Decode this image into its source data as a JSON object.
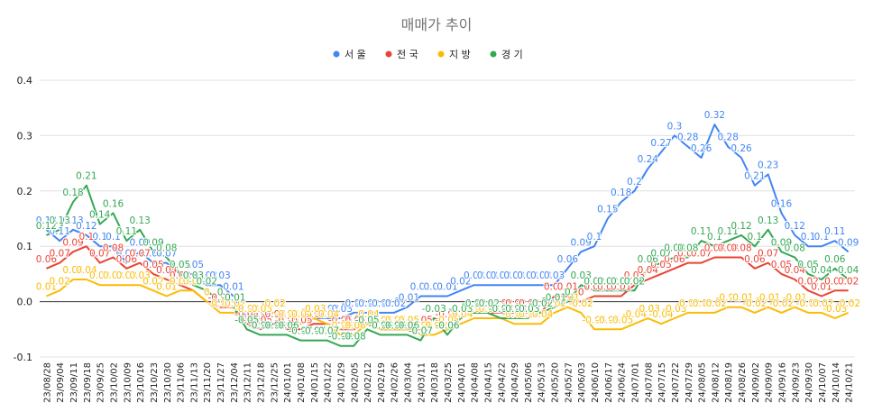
{
  "chart_data": {
    "type": "line",
    "title": "매매가 추이",
    "xlabel": "",
    "ylabel": "",
    "ylim": [
      -0.1,
      0.4
    ],
    "yticks": [
      -0.1,
      0.0,
      0.1,
      0.2,
      0.3,
      0.4
    ],
    "ytick_labels": [
      "-0.1",
      "0.0",
      "0.1",
      "0.2",
      "0.3",
      "0.4"
    ],
    "grid": "horizontal",
    "legend_position": "top",
    "x": [
      "23/08/28",
      "23/09/04",
      "23/09/11",
      "23/09/18",
      "23/09/25",
      "23/10/02",
      "23/10/09",
      "23/10/16",
      "23/10/23",
      "23/10/30",
      "23/11/06",
      "23/11/13",
      "23/11/20",
      "23/11/27",
      "23/12/04",
      "23/12/11",
      "23/12/18",
      "23/12/25",
      "24/01/01",
      "24/01/08",
      "24/01/15",
      "24/01/22",
      "24/01/29",
      "24/02/05",
      "24/02/12",
      "24/02/19",
      "24/02/26",
      "24/03/04",
      "24/03/11",
      "24/03/18",
      "24/03/25",
      "24/04/01",
      "24/04/08",
      "24/04/15",
      "24/04/22",
      "24/04/29",
      "24/05/06",
      "24/05/13",
      "24/05/20",
      "24/05/27",
      "24/06/03",
      "24/06/10",
      "24/06/17",
      "24/06/24",
      "24/07/01",
      "24/07/08",
      "24/07/15",
      "24/07/22",
      "24/07/29",
      "24/08/05",
      "24/08/12",
      "24/08/19",
      "24/08/26",
      "24/09/02",
      "24/09/09",
      "24/09/16",
      "24/09/23",
      "24/09/30",
      "24/10/07",
      "24/10/14",
      "24/10/21"
    ],
    "xtick_labels": [
      "23/08/28",
      "23/09/04",
      "23/09/11",
      "23/09/18",
      "23/09/25",
      "23/10/02",
      "23/10/09",
      "23/10/16",
      "23/10/23",
      "23/10/30",
      "23/11/06",
      "23/11/13",
      "23/11/20",
      "23/11/27",
      "23/12/04",
      "23/12/11",
      "23/12/18",
      "23/12/25",
      "24/01/01",
      "24/01/08",
      "24/01/15",
      "24/01/22",
      "24/01/29",
      "24/02/05",
      "24/02/12",
      "24/02/19",
      "24/02/26",
      "24/03/04",
      "24/03/11",
      "24/03/18",
      "24/03/25",
      "24/04/01",
      "24/04/08",
      "24/04/15",
      "24/04/22",
      "24/04/29",
      "24/05/06",
      "24/05/13",
      "24/05/20",
      "24/05/27",
      "24/06/03",
      "24/06/10",
      "24/06/17",
      "24/06/24",
      "24/07/01",
      "24/07/08",
      "24/07/15",
      "24/07/22",
      "24/07/29",
      "24/08/05",
      "24/08/12",
      "24/08/19",
      "24/08/26",
      "24/09/02",
      "24/09/09",
      "24/09/16",
      "24/09/23",
      "24/09/30",
      "24/10/07",
      "24/10/14",
      "24/10/21"
    ],
    "series": [
      {
        "name": "서울",
        "color": "#4285F4",
        "values": [
          0.13,
          0.11,
          0.13,
          0.12,
          0.1,
          0.1,
          0.07,
          0.09,
          0.07,
          0.07,
          0.05,
          0.05,
          0.03,
          0.03,
          0.01,
          -0.03,
          -0.04,
          -0.04,
          -0.04,
          -0.04,
          -0.03,
          -0.03,
          -0.03,
          -0.02,
          -0.02,
          -0.02,
          -0.02,
          -0.01,
          0.01,
          0.01,
          0.01,
          0.02,
          0.03,
          0.03,
          0.03,
          0.03,
          0.03,
          0.03,
          0.03,
          0.06,
          0.09,
          0.1,
          0.15,
          0.18,
          0.2,
          0.24,
          0.27,
          0.3,
          0.28,
          0.26,
          0.32,
          0.28,
          0.26,
          0.21,
          0.23,
          0.16,
          0.12,
          0.1,
          0.1,
          0.11,
          0.09
        ]
      },
      {
        "name": "전국",
        "color": "#EA4335",
        "values": [
          0.06,
          0.07,
          0.09,
          0.1,
          0.07,
          0.08,
          0.06,
          0.07,
          0.05,
          0.04,
          0.03,
          0.02,
          0.0,
          -0.01,
          -0.01,
          -0.04,
          -0.05,
          -0.04,
          -0.05,
          -0.05,
          -0.04,
          -0.04,
          -0.05,
          -0.05,
          -0.04,
          -0.05,
          -0.05,
          -0.05,
          -0.05,
          -0.03,
          -0.04,
          -0.03,
          -0.02,
          -0.02,
          -0.02,
          -0.02,
          -0.02,
          -0.02,
          0.01,
          0.01,
          0.0,
          0.01,
          0.01,
          0.01,
          0.03,
          0.04,
          0.05,
          0.06,
          0.07,
          0.07,
          0.08,
          0.08,
          0.08,
          0.06,
          0.07,
          0.05,
          0.04,
          0.02,
          0.01,
          0.02,
          0.02
        ]
      },
      {
        "name": "지방",
        "color": "#FBBC04",
        "values": [
          0.01,
          0.02,
          0.04,
          0.04,
          0.03,
          0.03,
          0.03,
          0.03,
          0.02,
          0.01,
          0.02,
          0.02,
          0.0,
          -0.02,
          -0.02,
          -0.03,
          -0.03,
          -0.02,
          -0.04,
          -0.04,
          -0.03,
          -0.04,
          -0.06,
          -0.06,
          -0.04,
          -0.05,
          -0.05,
          -0.05,
          -0.06,
          -0.06,
          -0.05,
          -0.04,
          -0.03,
          -0.03,
          -0.03,
          -0.04,
          -0.04,
          -0.04,
          -0.02,
          -0.01,
          -0.02,
          -0.05,
          -0.05,
          -0.05,
          -0.04,
          -0.03,
          -0.04,
          -0.03,
          -0.02,
          -0.02,
          -0.02,
          -0.01,
          -0.01,
          -0.02,
          -0.01,
          -0.02,
          -0.01,
          -0.02,
          -0.02,
          -0.03,
          -0.02
        ]
      },
      {
        "name": "경기",
        "color": "#34A853",
        "values": [
          0.12,
          0.13,
          0.18,
          0.21,
          0.14,
          0.16,
          0.11,
          0.13,
          0.09,
          0.08,
          0.05,
          0.03,
          0.02,
          0.0,
          -0.01,
          -0.05,
          -0.06,
          -0.06,
          -0.06,
          -0.07,
          -0.07,
          -0.07,
          -0.08,
          -0.08,
          -0.05,
          -0.06,
          -0.06,
          -0.06,
          -0.07,
          -0.03,
          -0.06,
          -0.03,
          -0.02,
          -0.02,
          -0.03,
          -0.03,
          -0.03,
          -0.02,
          -0.01,
          0.0,
          0.03,
          0.02,
          0.02,
          0.02,
          0.02,
          0.06,
          0.07,
          0.08,
          0.08,
          0.11,
          0.1,
          0.11,
          0.12,
          0.1,
          0.13,
          0.09,
          0.08,
          0.05,
          0.04,
          0.06,
          0.04
        ]
      }
    ],
    "data_labels": true
  }
}
